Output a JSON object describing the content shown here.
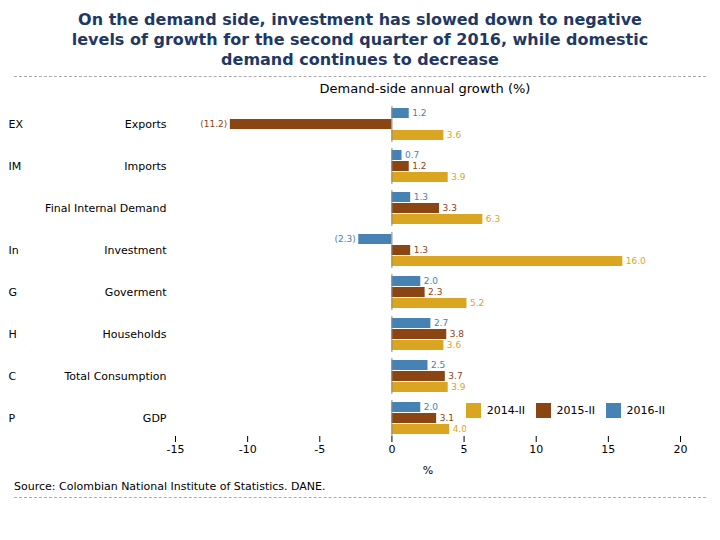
{
  "chart_data": {
    "type": "bar",
    "orientation": "horizontal",
    "title": "On the demand side, investment has slowed down to negative\nlevels of growth for the second quarter of 2016, while domestic\ndemand continues to decrease",
    "subtitle": "Demand-side annual growth (%)",
    "xlabel": "%",
    "source": "Source: Colombian National Institute of Statistics. DANE.",
    "categories": [
      "Exports",
      "Imports",
      "Final Internal Demand",
      "Investment",
      "Goverment",
      "Households",
      "Total Consumption",
      "GDP"
    ],
    "annotations": [
      "EX",
      "IM",
      null,
      "In",
      "G",
      "H",
      "C",
      "P"
    ],
    "series": [
      {
        "name": "2014-II",
        "color": "#DAA520",
        "values": [
          3.6,
          3.9,
          6.3,
          16.0,
          5.2,
          3.6,
          3.9,
          4.0
        ],
        "value_labels": [
          "3.6",
          "3.9",
          "6.3",
          "16.0",
          "5.2",
          "3.6",
          "3.9",
          "4.0"
        ]
      },
      {
        "name": "2015-II",
        "color": "#8B4513",
        "values": [
          -11.2,
          1.2,
          3.3,
          1.3,
          2.3,
          3.8,
          3.7,
          3.1
        ],
        "value_labels": [
          "(11.2)",
          "1.2",
          "3.3",
          "1.3",
          "2.3",
          "3.8",
          "3.7",
          "3.1"
        ]
      },
      {
        "name": "2016-II",
        "color": "#4682B4",
        "values": [
          1.2,
          0.7,
          1.3,
          -2.3,
          2.0,
          2.7,
          2.5,
          2.0
        ],
        "value_labels": [
          "1.2",
          "0.7",
          "1.3",
          "(2.3)",
          "2.0",
          "2.7",
          "2.5",
          "2.0"
        ]
      }
    ],
    "xlim": [
      -15,
      20
    ],
    "xticks": [
      -15,
      -10,
      -5,
      0,
      5,
      10,
      15,
      20
    ],
    "legend": "lower right",
    "data_labels": true,
    "grid": false
  }
}
